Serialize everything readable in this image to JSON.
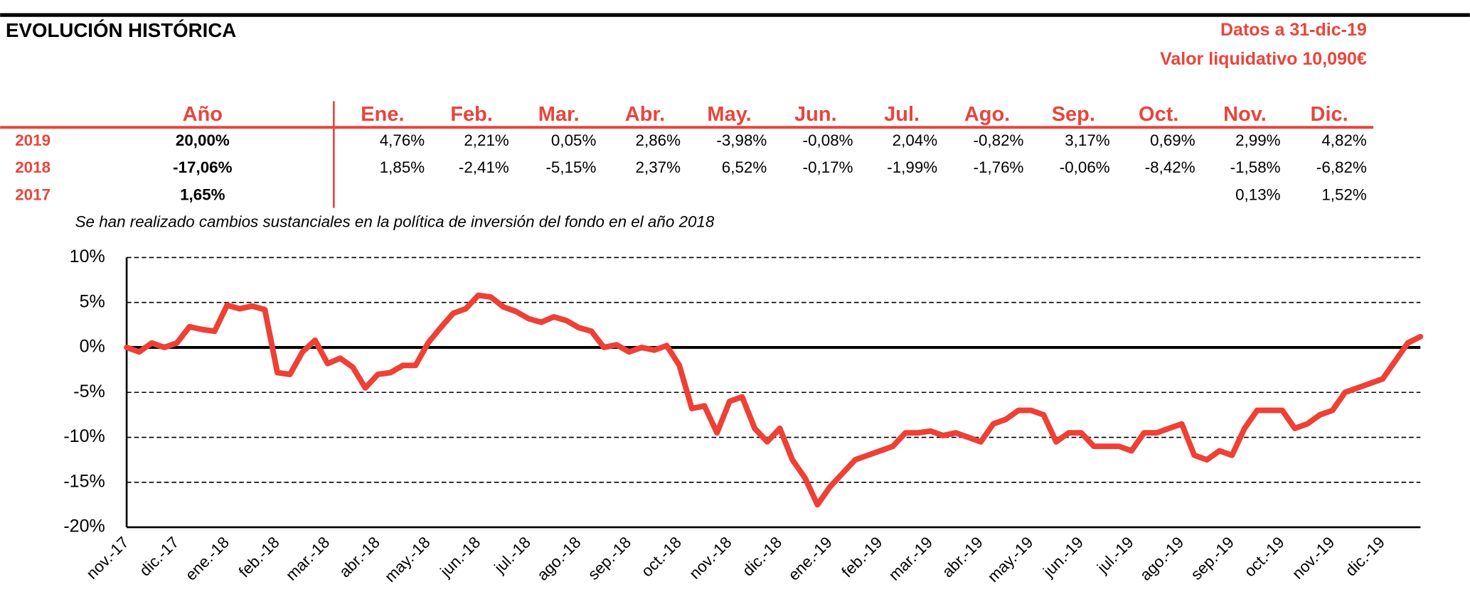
{
  "header": {
    "title": "EVOLUCIÓN HISTÓRICA",
    "date": "Datos a 31-dic-19",
    "nav": "Valor liquidativo 10,090€"
  },
  "table": {
    "columns": [
      "Año",
      "Ene.",
      "Feb.",
      "Mar.",
      "Abr.",
      "May.",
      "Jun.",
      "Jul.",
      "Ago.",
      "Sep.",
      "Oct.",
      "Nov.",
      "Dic."
    ],
    "rows": [
      {
        "year": "2019",
        "annual": "20,00%",
        "months": [
          "4,76%",
          "2,21%",
          "0,05%",
          "2,86%",
          "-3,98%",
          "-0,08%",
          "2,04%",
          "-0,82%",
          "3,17%",
          "0,69%",
          "2,99%",
          "4,82%"
        ]
      },
      {
        "year": "2018",
        "annual": "-17,06%",
        "months": [
          "1,85%",
          "-2,41%",
          "-5,15%",
          "2,37%",
          "6,52%",
          "-0,17%",
          "-1,99%",
          "-1,76%",
          "-0,06%",
          "-8,42%",
          "-1,58%",
          "-6,82%"
        ]
      },
      {
        "year": "2017",
        "annual": "1,65%",
        "months": [
          null,
          null,
          null,
          null,
          null,
          null,
          null,
          null,
          null,
          null,
          "0,13%",
          "1,52%"
        ]
      }
    ]
  },
  "note": "Se han realizado cambios sustanciales en la política de inversión del fondo en el año 2018",
  "chart_data": {
    "type": "line",
    "categories": [
      "nov.-17",
      null,
      null,
      null,
      "dic.-17",
      null,
      null,
      null,
      "ene.-18",
      null,
      null,
      null,
      "feb.-18",
      null,
      null,
      null,
      "mar.-18",
      null,
      null,
      null,
      "abr.-18",
      null,
      null,
      null,
      "may.-18",
      null,
      null,
      null,
      "jun.-18",
      null,
      null,
      null,
      "jul.-18",
      null,
      null,
      null,
      "ago.-18",
      null,
      null,
      null,
      "sep.-18",
      null,
      null,
      null,
      "oct.-18",
      null,
      null,
      null,
      "nov.-18",
      null,
      null,
      null,
      "dic.-18",
      null,
      null,
      null,
      "ene.-19",
      null,
      null,
      null,
      "feb.-19",
      null,
      null,
      null,
      "mar.-19",
      null,
      null,
      null,
      "abr.-19",
      null,
      null,
      null,
      "may.-19",
      null,
      null,
      null,
      "jun.-19",
      null,
      null,
      null,
      "jul.-19",
      null,
      null,
      null,
      "ago.-19",
      null,
      null,
      null,
      "sep.-19",
      null,
      null,
      null,
      "oct.-19",
      null,
      null,
      null,
      "nov.-19",
      null,
      null,
      null,
      "dic.-19",
      null,
      null,
      null
    ],
    "series": [
      {
        "name": "Evolución",
        "color": "#ee4035",
        "values": [
          0,
          -0.5,
          0.5,
          0,
          0.5,
          2.3,
          2,
          1.8,
          4.7,
          4.3,
          4.6,
          4.2,
          -2.8,
          -3,
          -0.5,
          0.8,
          -1.8,
          -1.2,
          -2.2,
          -4.5,
          -3,
          -2.8,
          -2,
          -2,
          0.5,
          2.2,
          3.8,
          4.3,
          5.8,
          5.6,
          4.5,
          4,
          3.2,
          2.8,
          3.4,
          3,
          2.2,
          1.8,
          0,
          0.3,
          -0.5,
          0,
          -0.3,
          0.2,
          -2,
          -6.8,
          -6.5,
          -9.5,
          -6,
          -5.5,
          -9,
          -10.5,
          -9,
          -12.5,
          -14.5,
          -17.5,
          -15.5,
          -14,
          -12.5,
          -12,
          -11.5,
          -11,
          -9.5,
          -9.5,
          -9.3,
          -9.8,
          -9.5,
          -10,
          -10.5,
          -8.5,
          -8,
          -7,
          -7,
          -7.5,
          -10.5,
          -9.5,
          -9.5,
          -11,
          -11,
          -11,
          -11.5,
          -9.5,
          -9.5,
          -9,
          -8.5,
          -12,
          -12.5,
          -11.5,
          -12,
          -9,
          -7,
          -7,
          -7,
          -9,
          -8.5,
          -7.5,
          -7,
          -5,
          -4.5,
          -4,
          -3.5,
          -1.5,
          0.5,
          1.2
        ]
      }
    ],
    "ylim": [
      -20,
      10
    ],
    "yticks": [
      {
        "value": -20,
        "label": "-20%"
      },
      {
        "value": -15,
        "label": "-15%"
      },
      {
        "value": -10,
        "label": "-10%"
      },
      {
        "value": -5,
        "label": "-5%"
      },
      {
        "value": 0,
        "label": "0%"
      },
      {
        "value": 5,
        "label": "5%"
      },
      {
        "value": 10,
        "label": "10%"
      }
    ],
    "grid": true
  }
}
